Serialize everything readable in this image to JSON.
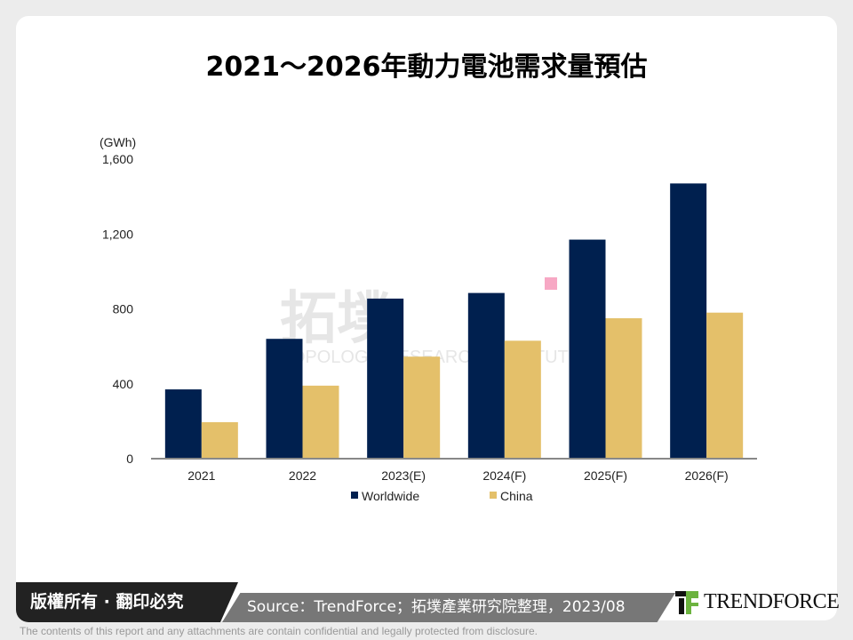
{
  "title": "2021～2026年動力電池需求量預估",
  "footer": {
    "copyright": "版權所有 · 翻印必究",
    "source": "Source：TrendForce；拓墣產業研究院整理，2023/08",
    "logo": "TRENDFORCE",
    "disclaimer": "The contents of this report and any attachments are contain confidential and legally protected from disclosure."
  },
  "watermark": "拓墣 TOPOLOGY RESEARCH INSTITUTE",
  "chart_data": {
    "type": "bar",
    "ylabel": "(GWh)",
    "ylim": [
      0,
      1600
    ],
    "yticks": [
      0,
      400,
      800,
      1200,
      1600
    ],
    "ytick_labels": [
      "0",
      "400",
      "800",
      "1,200",
      "1,600"
    ],
    "categories": [
      "2021",
      "2022",
      "2023(E)",
      "2024(F)",
      "2025(F)",
      "2026(F)"
    ],
    "series": [
      {
        "name": "Worldwide",
        "color": "#00204f",
        "values": [
          370,
          640,
          855,
          885,
          1170,
          1470
        ]
      },
      {
        "name": "China",
        "color": "#e4c06a",
        "values": [
          195,
          390,
          545,
          630,
          750,
          780
        ]
      }
    ],
    "grid": false,
    "legend": "bottom"
  }
}
